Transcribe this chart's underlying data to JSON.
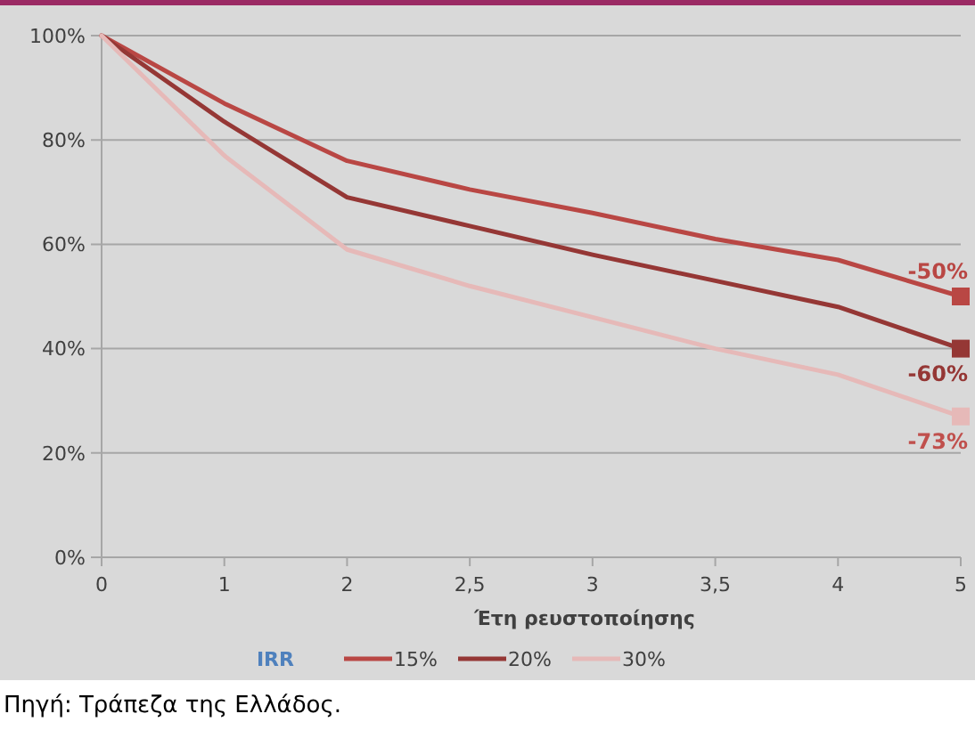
{
  "chart_data": {
    "type": "line",
    "xlabel": "Έτη ρευστοποίησης",
    "legend_title": "IRR",
    "legend": "bottom",
    "grid": "y",
    "categories": [
      "0",
      "1",
      "2",
      "2,5",
      "3",
      "3,5",
      "4",
      "5"
    ],
    "ylim": [
      0,
      100
    ],
    "yticks": [
      {
        "value": 0,
        "label": "0%"
      },
      {
        "value": 20,
        "label": "20%"
      },
      {
        "value": 40,
        "label": "40%"
      },
      {
        "value": 60,
        "label": "60%"
      },
      {
        "value": 80,
        "label": "80%"
      },
      {
        "value": 100,
        "label": "100%"
      }
    ],
    "series": [
      {
        "name": "15%",
        "color": "#b94744",
        "values": [
          100,
          87,
          76,
          70.5,
          66,
          61,
          57,
          50
        ]
      },
      {
        "name": "20%",
        "color": "#953735",
        "values": [
          100,
          83.5,
          69,
          63.5,
          58,
          53,
          48,
          40
        ]
      },
      {
        "name": "30%",
        "color": "#e6b9b8",
        "values": [
          100,
          77,
          59,
          52,
          46,
          40,
          35,
          27
        ]
      }
    ],
    "annotations": [
      {
        "text": "-50%",
        "x": "5",
        "y": 50
      },
      {
        "text": "-60%",
        "x": "5",
        "y": 40
      },
      {
        "text": "-73%",
        "x": "5",
        "y": 27
      },
      "Πηγή: Τράπεζα της Ελλάδος."
    ]
  }
}
